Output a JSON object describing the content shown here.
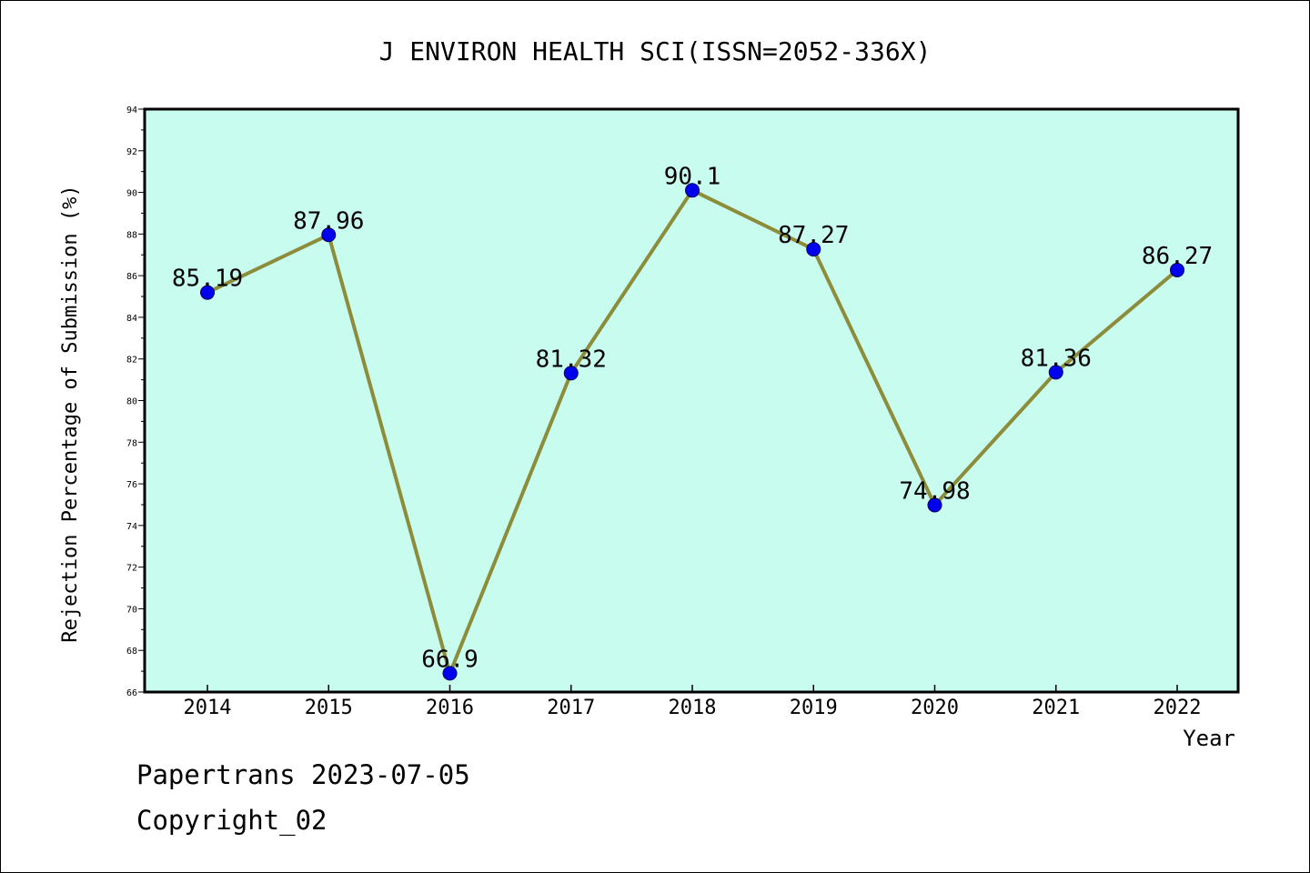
{
  "chart_data": {
    "type": "line",
    "title": "J ENVIRON HEALTH SCI(ISSN=2052-336X)",
    "xlabel": "Year",
    "ylabel": "Rejection Percentage of Submission (%)",
    "categories": [
      "2014",
      "2015",
      "2016",
      "2017",
      "2018",
      "2019",
      "2020",
      "2021",
      "2022"
    ],
    "series": [
      {
        "values": [
          85.19,
          87.96,
          66.9,
          81.32,
          90.1,
          87.27,
          74.98,
          81.36,
          86.27
        ],
        "labels": [
          "85.19",
          "87.96",
          "66.9",
          "81.32",
          "90.1",
          "87.27",
          "74.98",
          "81.36",
          "86.27"
        ]
      }
    ],
    "ylim": [
      66,
      94
    ],
    "yticks": [
      "66",
      "68",
      "70",
      "72",
      "74",
      "76",
      "78",
      "80",
      "82",
      "84",
      "86",
      "88",
      "90",
      "92",
      "94"
    ],
    "grid": false,
    "colors": {
      "plot_background": "#c8fcee",
      "line": "#8c8c3a",
      "marker": "#0000ee"
    }
  },
  "footer": {
    "line1": "Papertrans 2023-07-05",
    "line2": "Copyright_02"
  }
}
